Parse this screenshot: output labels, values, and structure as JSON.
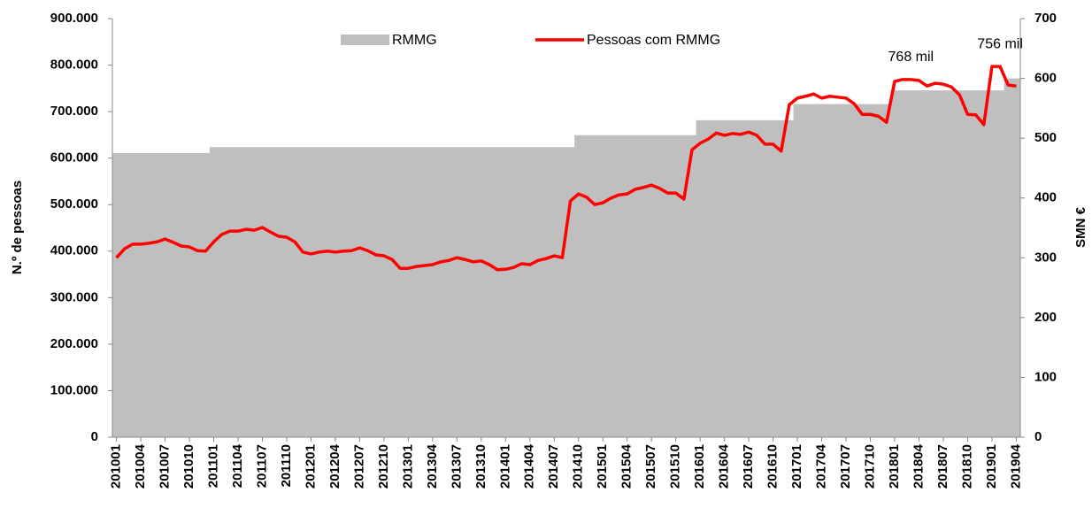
{
  "chart_data": {
    "type": "line-area",
    "categories": [
      "201001",
      null,
      null,
      "201004",
      null,
      null,
      "201007",
      null,
      null,
      "201010",
      null,
      null,
      "201101",
      null,
      null,
      "201104",
      null,
      null,
      "201107",
      null,
      null,
      "201110",
      null,
      null,
      "201201",
      null,
      null,
      "201204",
      null,
      null,
      "201207",
      null,
      null,
      "201210",
      null,
      null,
      "201301",
      null,
      null,
      "201304",
      null,
      null,
      "201307",
      null,
      null,
      "201310",
      null,
      null,
      "201401",
      null,
      null,
      "201404",
      null,
      null,
      "201407",
      null,
      null,
      "201410",
      null,
      null,
      "201501",
      null,
      null,
      "201504",
      null,
      null,
      "201507",
      null,
      null,
      "201510",
      null,
      null,
      "201601",
      null,
      null,
      "201604",
      null,
      null,
      "201607",
      null,
      null,
      "201610",
      null,
      null,
      "201701",
      null,
      null,
      "201704",
      null,
      null,
      "201707",
      null,
      null,
      "201710",
      null,
      null,
      "201801",
      null,
      null,
      "201804",
      null,
      null,
      "201807",
      null,
      null,
      "201810",
      null,
      null,
      "201901",
      null,
      null,
      "201904"
    ],
    "series": [
      {
        "name": "RMMG",
        "kind": "area",
        "axis": "y2",
        "color": "#bfbfbf",
        "values": [
          475,
          475,
          475,
          475,
          475,
          475,
          475,
          475,
          475,
          475,
          475,
          475,
          485,
          485,
          485,
          485,
          485,
          485,
          485,
          485,
          485,
          485,
          485,
          485,
          485,
          485,
          485,
          485,
          485,
          485,
          485,
          485,
          485,
          485,
          485,
          485,
          485,
          485,
          485,
          485,
          485,
          485,
          485,
          485,
          485,
          485,
          485,
          485,
          485,
          485,
          485,
          485,
          485,
          485,
          485,
          485,
          485,
          505,
          505,
          505,
          505,
          505,
          505,
          505,
          505,
          505,
          505,
          505,
          505,
          505,
          505,
          505,
          530,
          530,
          530,
          530,
          530,
          530,
          530,
          530,
          530,
          530,
          530,
          530,
          557,
          557,
          557,
          557,
          557,
          557,
          557,
          557,
          557,
          557,
          557,
          557,
          580,
          580,
          580,
          580,
          580,
          580,
          580,
          580,
          580,
          580,
          580,
          580,
          580,
          580,
          600,
          600
        ]
      },
      {
        "name": "Pessoas com RMMG",
        "kind": "line",
        "color": "#ff0000",
        "values": [
          386000,
          405000,
          415000,
          415000,
          417000,
          420000,
          426000,
          419000,
          411000,
          409000,
          401000,
          400000,
          420000,
          436000,
          443000,
          443000,
          447000,
          445000,
          451000,
          441000,
          432000,
          430000,
          420000,
          398000,
          394000,
          398000,
          400000,
          398000,
          400000,
          401000,
          407000,
          401000,
          392000,
          390000,
          382000,
          363000,
          363000,
          367000,
          369000,
          371000,
          377000,
          380000,
          386000,
          382000,
          377000,
          379000,
          371000,
          360000,
          361000,
          365000,
          373000,
          371000,
          380000,
          384000,
          390000,
          386000,
          508000,
          523000,
          516000,
          500000,
          504000,
          514000,
          521000,
          523000,
          533000,
          537000,
          542000,
          535000,
          525000,
          525000,
          512000,
          618000,
          632000,
          641000,
          654000,
          649000,
          653000,
          651000,
          656000,
          649000,
          630000,
          630000,
          615000,
          715000,
          729000,
          733000,
          738000,
          729000,
          733000,
          731000,
          729000,
          717000,
          694000,
          694000,
          690000,
          677000,
          765000,
          769000,
          769000,
          767000,
          755000,
          761000,
          759000,
          753000,
          736000,
          694000,
          693000,
          672000,
          797000,
          797000,
          757000,
          755000
        ]
      }
    ],
    "annotations": [
      {
        "text": "768 mil",
        "at": 98
      },
      {
        "text": "756 mil",
        "at": 109
      }
    ],
    "ylabel": "N.º de pessoas",
    "y2label": "SMN €",
    "ylim": [
      0,
      900000
    ],
    "yticks": [
      0,
      {
        "value": 100000,
        "label": "100.000"
      },
      {
        "value": 200000,
        "label": "200.000"
      },
      {
        "value": 300000,
        "label": "300.000"
      },
      {
        "value": 400000,
        "label": "400.000"
      },
      {
        "value": 500000,
        "label": "500.000"
      },
      {
        "value": 600000,
        "label": "600.000"
      },
      {
        "value": 700000,
        "label": "700.000"
      },
      {
        "value": 800000,
        "label": "800.000"
      },
      {
        "value": 900000,
        "label": "900.000"
      }
    ],
    "y2lim": [
      0,
      700
    ],
    "y2ticks": [
      0,
      100,
      200,
      300,
      400,
      500,
      600,
      700
    ],
    "grid": false,
    "legend": "top"
  }
}
